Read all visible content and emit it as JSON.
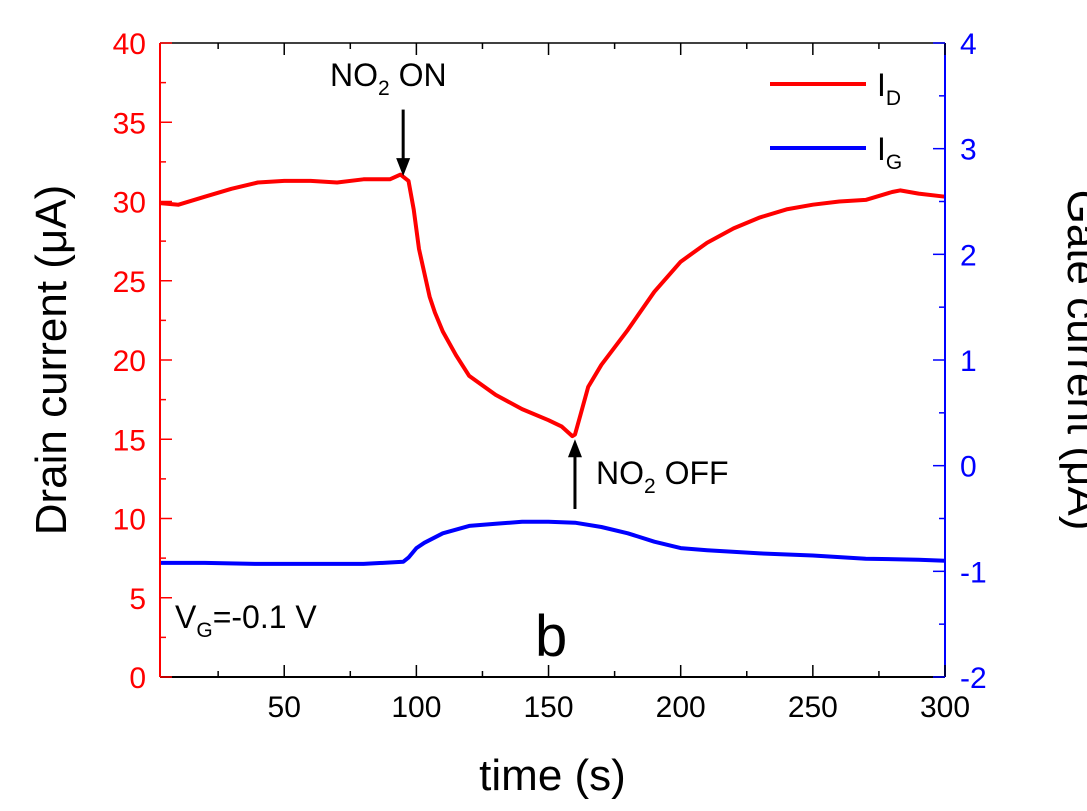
{
  "chart_data": {
    "type": "line",
    "title": "",
    "xlabel": "time (s)",
    "ylabel_left": "Drain current (μA)",
    "ylabel_right": "Gate current (μA)",
    "xlim": [
      3,
      300
    ],
    "ylim_left": [
      0,
      40
    ],
    "ylim_right": [
      -2,
      4
    ],
    "x_ticks": [
      50,
      100,
      150,
      200,
      250,
      300
    ],
    "y_left_ticks": [
      0,
      5,
      10,
      15,
      20,
      25,
      30,
      35,
      40
    ],
    "y_right_ticks": [
      -2,
      -1,
      0,
      1,
      2,
      3,
      4
    ],
    "grid": false,
    "legend_position": "top-right",
    "series": [
      {
        "name": "I_D",
        "legend_main": "I",
        "legend_sub": "D",
        "color": "#ff0000",
        "axis": "left",
        "x": [
          3,
          10,
          20,
          30,
          40,
          50,
          60,
          70,
          80,
          90,
          94,
          97,
          99,
          101,
          103,
          105,
          107,
          110,
          115,
          120,
          130,
          140,
          150,
          155,
          159,
          160,
          162,
          165,
          170,
          180,
          190,
          200,
          210,
          220,
          230,
          240,
          250,
          260,
          270,
          280,
          283,
          290,
          300
        ],
        "y": [
          29.9,
          29.8,
          30.3,
          30.8,
          31.2,
          31.3,
          31.3,
          31.2,
          31.4,
          31.4,
          31.7,
          31.3,
          29.5,
          27.0,
          25.5,
          24.0,
          23.0,
          21.8,
          20.3,
          19.0,
          17.8,
          16.9,
          16.2,
          15.8,
          15.2,
          15.3,
          16.5,
          18.3,
          19.7,
          21.9,
          24.3,
          26.2,
          27.4,
          28.3,
          29.0,
          29.5,
          29.8,
          30.0,
          30.1,
          30.6,
          30.7,
          30.5,
          30.3
        ]
      },
      {
        "name": "I_G",
        "legend_main": "I",
        "legend_sub": "G",
        "color": "#0000ff",
        "axis": "right",
        "x": [
          3,
          20,
          40,
          60,
          80,
          95,
          97,
          100,
          103,
          110,
          120,
          130,
          140,
          150,
          160,
          170,
          180,
          190,
          200,
          210,
          230,
          250,
          270,
          290,
          300
        ],
        "y": [
          -0.92,
          -0.92,
          -0.93,
          -0.93,
          -0.93,
          -0.91,
          -0.87,
          -0.78,
          -0.73,
          -0.64,
          -0.57,
          -0.55,
          -0.53,
          -0.53,
          -0.54,
          -0.58,
          -0.64,
          -0.72,
          -0.78,
          -0.8,
          -0.83,
          -0.85,
          -0.88,
          -0.89,
          -0.9
        ]
      }
    ],
    "annotations": [
      {
        "id": "no2-on",
        "main": "NO",
        "sub": "2",
        "rest": " ON",
        "arrow_x": 95,
        "arrow_tip_y": 31.6,
        "arrow_tail_y": 35.8,
        "direction": "down"
      },
      {
        "id": "no2-off",
        "main": "NO",
        "sub": "2",
        "rest": " OFF",
        "arrow_x": 160,
        "arrow_tip_y": 15.0,
        "arrow_tail_y": 10.6,
        "direction": "up"
      }
    ],
    "condition_label": {
      "main": "V",
      "sub": "G",
      "rest": "=-0.1 V"
    },
    "panel_label": "b"
  }
}
